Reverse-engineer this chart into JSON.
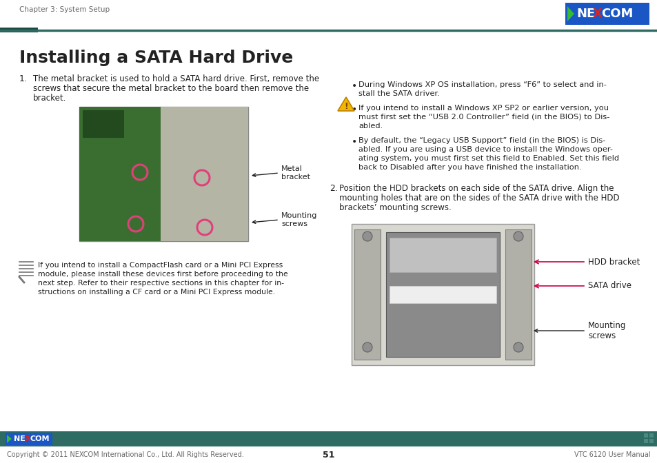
{
  "title": "Installing a SATA Hard Drive",
  "bg_color": "#ffffff",
  "header_text": "Chapter 3: System Setup",
  "footer_text": "Copyright © 2011 NEXCOM International Co., Ltd. All Rights Reserved.",
  "footer_page": "51",
  "footer_right": "VTC 6120 User Manual",
  "teal_bar_color": "#2e6b62",
  "dark_teal": "#1e4a44",
  "red_color": "#cc0044",
  "nexcom_blue": "#1a56c4",
  "nexcom_green": "#33bb33",
  "nexcom_red": "#dd2222",
  "separator_color": "#aaaaaa",
  "text_color": "#222222",
  "gray_text": "#666666",
  "item1_line1": "The metal bracket is used to hold a SATA hard drive. First, remove the",
  "item1_line2": "screws that secure the metal bracket to the board then remove the",
  "item1_line3": "bracket.",
  "item2_line1": "Position the HDD brackets on each side of the SATA drive. Align the",
  "item2_line2": "mounting holes that are on the sides of the SATA drive with the HDD",
  "item2_line3": "brackets’ mounting screws.",
  "bullet1_lines": [
    "During Windows XP OS installation, press “F6” to select and in-",
    "stall the SATA driver."
  ],
  "bullet2_lines": [
    "If you intend to install a Windows XP SP2 or earlier version, you",
    "must first set the “USB 2.0 Controller” field (in the BIOS) to Dis-",
    "abled."
  ],
  "bullet3_lines": [
    "By default, the “Legacy USB Support” field (in the BIOS) is Dis-",
    "abled. If you are using a USB device to install the Windows oper-",
    "ating system, you must first set this field to Enabled. Set this field",
    "back to Disabled after you have finished the installation."
  ],
  "note_lines": [
    "If you intend to install a CompactFlash card or a Mini PCI Express",
    "module, please install these devices first before proceeding to the",
    "next step. Refer to their respective sections in this chapter for in-",
    "structions on installing a CF card or a Mini PCI Express module."
  ],
  "label_metal_bracket": "Metal\nbracket",
  "label_mounting_screws_left": "Mounting\nscrews",
  "label_hdd_bracket": "HDD bracket",
  "label_sata_drive": "SATA drive",
  "label_mounting_screws_right": "Mounting\nscrews"
}
